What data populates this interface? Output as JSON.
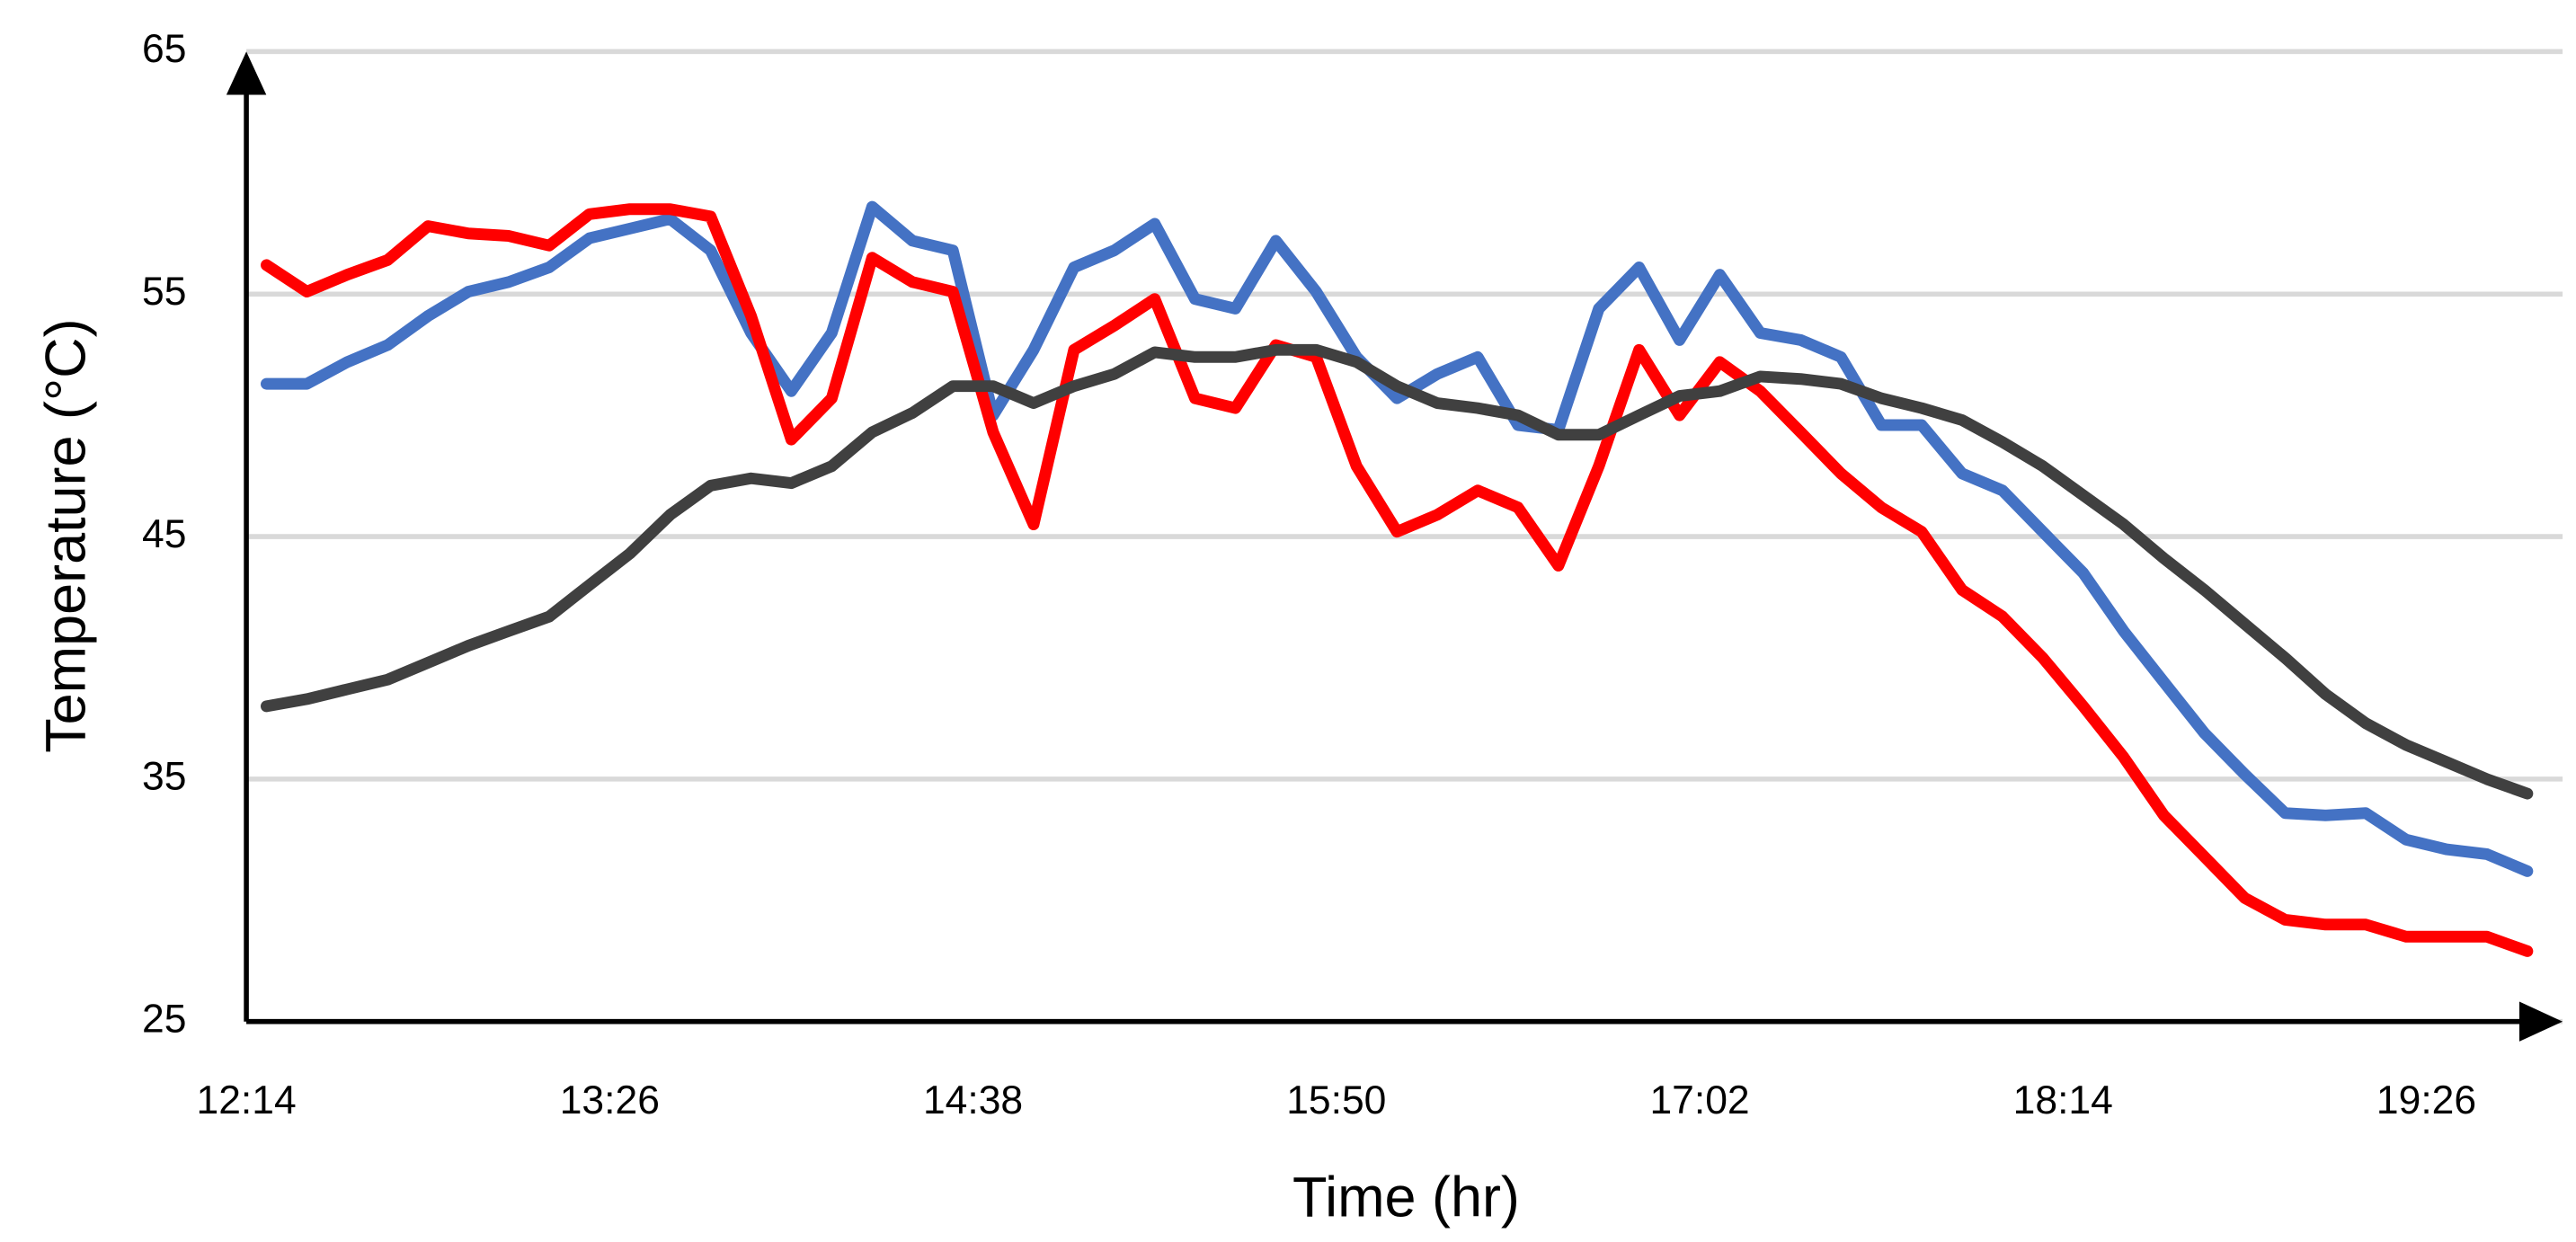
{
  "chart_data": {
    "type": "line",
    "x_label": "Time (hr)",
    "y_label": "Temperature (°C)",
    "x": [
      738,
      746,
      754,
      762,
      770,
      778,
      786,
      794,
      802,
      810,
      818,
      826,
      834,
      842,
      850,
      858,
      866,
      874,
      882,
      890,
      898,
      906,
      914,
      922,
      930,
      938,
      946,
      954,
      962,
      970,
      978,
      986,
      994,
      1002,
      1010,
      1018,
      1026,
      1034,
      1042,
      1050,
      1058,
      1066,
      1074,
      1082,
      1090,
      1098,
      1106,
      1114,
      1122,
      1130,
      1138,
      1146,
      1154,
      1162,
      1170,
      1178,
      1186
    ],
    "series": [
      {
        "color": "#4472c4",
        "values": [
          51.3,
          51.3,
          52.2,
          52.9,
          54.1,
          55.1,
          55.5,
          56.1,
          57.3,
          57.7,
          58.1,
          56.8,
          53.4,
          51.0,
          53.4,
          58.6,
          57.2,
          56.8,
          50.0,
          52.7,
          56.1,
          56.8,
          57.9,
          54.8,
          54.4,
          57.2,
          55.1,
          52.4,
          50.7,
          51.7,
          52.4,
          49.6,
          49.4,
          54.4,
          56.1,
          53.1,
          55.8,
          53.4,
          53.1,
          52.4,
          49.6,
          49.6,
          47.6,
          46.9,
          45.2,
          43.5,
          41.1,
          39.0,
          36.9,
          35.2,
          33.6,
          33.5,
          33.6,
          32.5,
          32.1,
          31.9,
          31.2
        ]
      },
      {
        "color": "#ff0000",
        "values": [
          56.2,
          55.1,
          55.8,
          56.4,
          57.8,
          57.5,
          57.4,
          57.0,
          58.3,
          58.5,
          58.5,
          58.2,
          54.1,
          49.0,
          50.7,
          56.5,
          55.5,
          55.1,
          49.3,
          45.5,
          52.7,
          53.7,
          54.8,
          50.7,
          50.3,
          52.9,
          52.4,
          47.9,
          45.2,
          45.9,
          46.9,
          46.2,
          43.8,
          47.9,
          52.7,
          50.0,
          52.2,
          51.0,
          49.3,
          47.6,
          46.2,
          45.2,
          42.8,
          41.7,
          40.0,
          38.0,
          35.9,
          33.5,
          31.8,
          30.1,
          29.2,
          29.0,
          29.0,
          28.5,
          28.5,
          28.5,
          27.9
        ]
      },
      {
        "color": "#404040",
        "values": [
          38.0,
          38.3,
          38.7,
          39.1,
          39.8,
          40.5,
          41.1,
          41.7,
          43.0,
          44.3,
          45.9,
          47.1,
          47.4,
          47.2,
          47.9,
          49.3,
          50.1,
          51.2,
          51.2,
          50.5,
          51.2,
          51.7,
          52.6,
          52.4,
          52.4,
          52.7,
          52.7,
          52.2,
          51.2,
          50.5,
          50.3,
          50.0,
          49.2,
          49.2,
          50.0,
          50.8,
          51.0,
          51.6,
          51.5,
          51.3,
          50.7,
          50.3,
          49.8,
          48.9,
          47.9,
          46.7,
          45.5,
          44.1,
          42.8,
          41.4,
          40.0,
          38.5,
          37.3,
          36.4,
          35.7,
          35.0,
          34.4
        ]
      }
    ],
    "xlim": [
      734,
      1193
    ],
    "xticks": [
      {
        "value": 734,
        "label": "12:14"
      },
      {
        "value": 806,
        "label": "13:26"
      },
      {
        "value": 878,
        "label": "14:38"
      },
      {
        "value": 950,
        "label": "15:50"
      },
      {
        "value": 1022,
        "label": "17:02"
      },
      {
        "value": 1094,
        "label": "18:14"
      },
      {
        "value": 1166,
        "label": "19:26"
      }
    ],
    "ylim": [
      25,
      65
    ],
    "yticks": [
      25,
      35,
      45,
      55,
      65
    ],
    "grid": true
  }
}
